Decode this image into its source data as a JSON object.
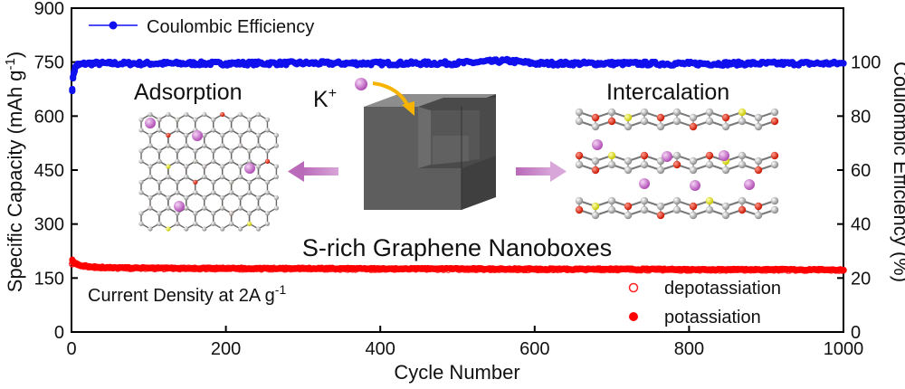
{
  "chart_data": {
    "type": "scatter",
    "xlabel": "Cycle Number",
    "ylabel_left": "Specific Capacity (mAh g",
    "ylabel_left_sup": "-1",
    "ylabel_left_close": ")",
    "ylabel_right": "Coulombic Efficiency (%)",
    "xlim": [
      0,
      1000
    ],
    "ylim_left": [
      0,
      900
    ],
    "ylim_right": [
      0,
      120
    ],
    "x_ticks": [
      "0",
      "200",
      "400",
      "600",
      "800",
      "1000"
    ],
    "y_left_ticks": [
      "0",
      "150",
      "300",
      "450",
      "600",
      "750",
      "900"
    ],
    "y_right_ticks": [
      "0",
      "20",
      "40",
      "60",
      "80",
      "100"
    ],
    "series": [
      {
        "name": "Coulombic Efficiency",
        "axis": "right",
        "color": "#1010ee",
        "marker": "filled-circle",
        "x": [
          1,
          2,
          3,
          4,
          5,
          6,
          8,
          10,
          15,
          20,
          30,
          50,
          100,
          200,
          300,
          400,
          500,
          565,
          600,
          700,
          800,
          900,
          1000
        ],
        "values": [
          90,
          94,
          96,
          97,
          98,
          98.5,
          99,
          99,
          99.3,
          99.5,
          99.5,
          99.5,
          99.5,
          99.5,
          99.6,
          99.5,
          99.6,
          100.5,
          99.5,
          99.5,
          99.4,
          99.5,
          99.5
        ]
      },
      {
        "name": "depotassiation",
        "axis": "left",
        "color": "#ff2020",
        "marker": "hollow-circle",
        "x": [
          1,
          2,
          5,
          10,
          20,
          30,
          50,
          100,
          200,
          300,
          400,
          500,
          600,
          700,
          800,
          900,
          1000
        ],
        "values": [
          190,
          195,
          190,
          186,
          182,
          180,
          178,
          177,
          176,
          176,
          175,
          175,
          174,
          174,
          173,
          173,
          172
        ]
      },
      {
        "name": "potassiation",
        "axis": "left",
        "color": "#ff0000",
        "marker": "filled-circle",
        "x": [
          1,
          2,
          5,
          10,
          20,
          30,
          50,
          100,
          200,
          300,
          400,
          500,
          600,
          700,
          800,
          900,
          1000
        ],
        "values": [
          200,
          196,
          191,
          187,
          183,
          181,
          179,
          178,
          177,
          177,
          176,
          176,
          175,
          175,
          174,
          174,
          173
        ]
      }
    ],
    "legend_ce": "Coulombic Efficiency",
    "legend_depot": "depotassiation",
    "legend_pot": "potassiation",
    "note": "Current Density at 2A g",
    "note_sup": "-1",
    "label_adsorption": "Adsorption",
    "label_intercalation": "Intercalation",
    "label_ion": "K",
    "label_ion_sup": "+",
    "label_material": "S-rich Graphene Nanoboxes"
  }
}
